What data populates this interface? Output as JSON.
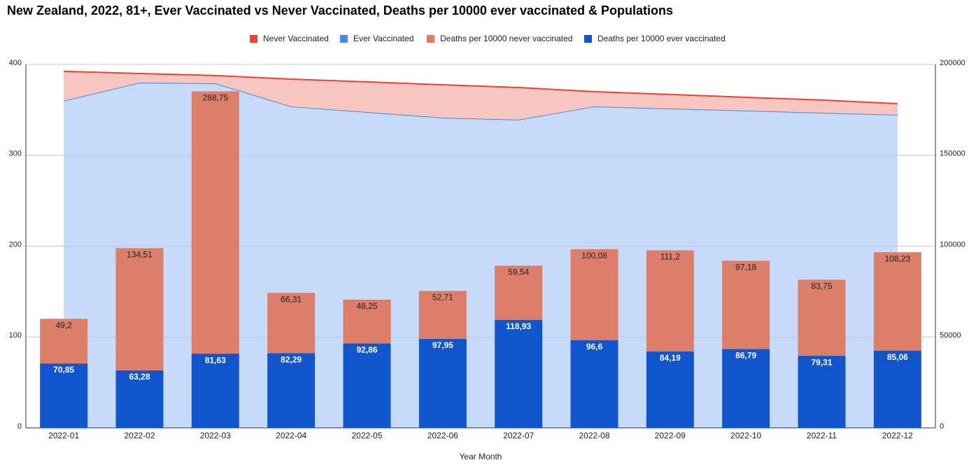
{
  "chart_data": {
    "type": "bar",
    "title": "New Zealand, 2022, 81+, Ever Vaccinated vs Never Vaccinated, Deaths per 10000 ever vaccinated & Populations",
    "x_label": "Year Month",
    "categories": [
      "2022-01",
      "2022-02",
      "2022-03",
      "2022-04",
      "2022-05",
      "2022-06",
      "2022-07",
      "2022-08",
      "2022-09",
      "2022-10",
      "2022-11",
      "2022-12"
    ],
    "series": [
      {
        "name": "Never Vaccinated",
        "type": "area",
        "axis": "y2",
        "color": "#ea4335",
        "fill": "#f8c6c1",
        "values": [
          16200,
          5000,
          4300,
          15000,
          16600,
          18100,
          17700,
          8100,
          7800,
          7300,
          7000,
          6100
        ]
      },
      {
        "name": "Ever Vaccinated",
        "type": "area",
        "axis": "y2",
        "color": "#4a86e8",
        "fill": "#c6dafa",
        "values": [
          180000,
          190000,
          189600,
          176900,
          173800,
          170700,
          169600,
          176900,
          175700,
          174600,
          173400,
          172300
        ]
      },
      {
        "name": "Deaths per 10000 never vaccinated",
        "type": "bar",
        "color": "#dd7e6b",
        "values": [
          49.2,
          134.51,
          288.75,
          66.31,
          48.25,
          52.71,
          59.54,
          100.08,
          111.2,
          97.18,
          83.75,
          108.23
        ],
        "value_labels": [
          "49,2",
          "134,51",
          "288,75",
          "66,31",
          "48,25",
          "52,71",
          "59,54",
          "100,08",
          "111,2",
          "97,18",
          "83,75",
          "108,23"
        ]
      },
      {
        "name": "Deaths per 10000 ever vaccinated",
        "type": "bar",
        "color": "#1155cc",
        "values": [
          70.85,
          63.28,
          81.63,
          82.29,
          92.86,
          97.95,
          118.93,
          96.6,
          84.19,
          86.79,
          79.31,
          85.06
        ],
        "value_labels": [
          "70,85",
          "63,28",
          "81,63",
          "82,29",
          "92,86",
          "97,95",
          "118,93",
          "96,6",
          "84,19",
          "86,79",
          "79,31",
          "85,06"
        ]
      }
    ],
    "stack_order": [
      3,
      2
    ],
    "area_stack_order": [
      1,
      0
    ],
    "ylim": [
      0,
      400
    ],
    "yticks": [
      0,
      100,
      200,
      300,
      400
    ],
    "y2lim": [
      0,
      200000
    ],
    "y2ticks": [
      0,
      50000,
      100000,
      150000,
      200000
    ],
    "grid": true,
    "legend": "top"
  }
}
